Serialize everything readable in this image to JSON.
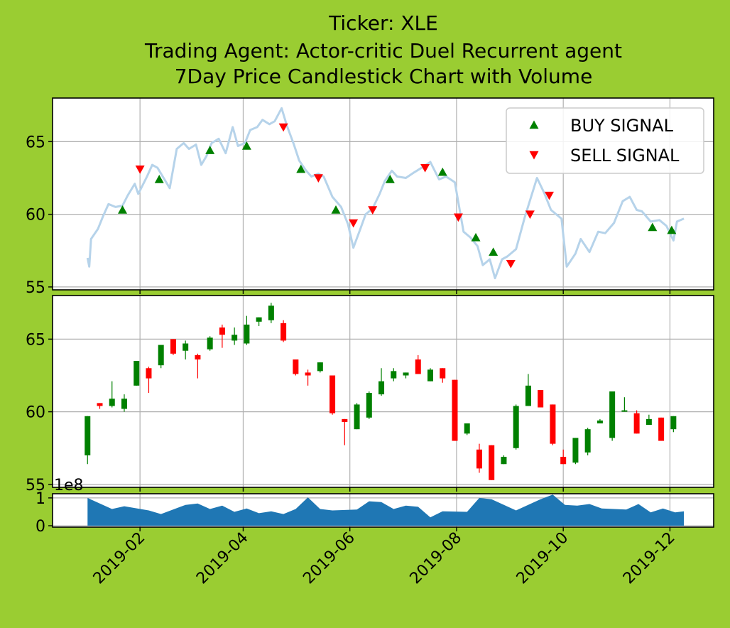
{
  "colors": {
    "background": "#9acd32",
    "line": "#b6d3ea",
    "buy": "#008000",
    "sell": "#ff0000",
    "volume": "#1f77b4",
    "grid": "#b0b0b0"
  },
  "chart_data": {
    "type": "line",
    "title": [
      "Ticker: XLE",
      "Trading Agent: Actor-critic Duel Recurrent agent",
      "7Day Price Candlestick Chart with Volume"
    ],
    "x_ticks": [
      "2019-02",
      "2019-04",
      "2019-06",
      "2019-08",
      "2019-10",
      "2019-12"
    ],
    "x_range": [
      "2018-12-13",
      "2019-12-26"
    ],
    "price_panel": {
      "ylim": [
        54.8,
        68.0
      ],
      "yticks": [
        55,
        60,
        65
      ],
      "grid": true,
      "legend_position": "top-right",
      "close_series": [
        [
          "2019-01-02",
          57.0
        ],
        [
          "2019-01-03",
          56.4
        ],
        [
          "2019-01-04",
          58.3
        ],
        [
          "2019-01-08",
          59.0
        ],
        [
          "2019-01-11",
          59.9
        ],
        [
          "2019-01-14",
          60.7
        ],
        [
          "2019-01-18",
          60.5
        ],
        [
          "2019-01-22",
          60.6
        ],
        [
          "2019-01-25",
          61.3
        ],
        [
          "2019-01-29",
          62.1
        ],
        [
          "2019-01-31",
          61.4
        ],
        [
          "2019-02-05",
          62.6
        ],
        [
          "2019-02-08",
          63.4
        ],
        [
          "2019-02-11",
          63.2
        ],
        [
          "2019-02-14",
          62.6
        ],
        [
          "2019-02-18",
          61.8
        ],
        [
          "2019-02-22",
          64.5
        ],
        [
          "2019-02-26",
          64.9
        ],
        [
          "2019-03-01",
          64.5
        ],
        [
          "2019-03-05",
          64.8
        ],
        [
          "2019-03-08",
          63.4
        ],
        [
          "2019-03-11",
          64.0
        ],
        [
          "2019-03-14",
          64.9
        ],
        [
          "2019-03-18",
          65.2
        ],
        [
          "2019-03-22",
          64.2
        ],
        [
          "2019-03-26",
          66.0
        ],
        [
          "2019-03-29",
          64.7
        ],
        [
          "2019-04-02",
          64.9
        ],
        [
          "2019-04-05",
          65.8
        ],
        [
          "2019-04-09",
          66.0
        ],
        [
          "2019-04-12",
          66.5
        ],
        [
          "2019-04-16",
          66.2
        ],
        [
          "2019-04-19",
          66.4
        ],
        [
          "2019-04-23",
          67.3
        ],
        [
          "2019-04-26",
          66.1
        ],
        [
          "2019-04-30",
          64.8
        ],
        [
          "2019-05-03",
          63.7
        ],
        [
          "2019-05-07",
          63.0
        ],
        [
          "2019-05-10",
          62.6
        ],
        [
          "2019-05-14",
          62.8
        ],
        [
          "2019-05-17",
          62.6
        ],
        [
          "2019-05-22",
          61.2
        ],
        [
          "2019-05-27",
          60.5
        ],
        [
          "2019-05-31",
          59.3
        ],
        [
          "2019-06-03",
          57.7
        ],
        [
          "2019-06-07",
          59.0
        ],
        [
          "2019-06-10",
          60.0
        ],
        [
          "2019-06-14",
          60.4
        ],
        [
          "2019-06-18",
          61.4
        ],
        [
          "2019-06-21",
          62.3
        ],
        [
          "2019-06-25",
          63.0
        ],
        [
          "2019-06-28",
          62.6
        ],
        [
          "2019-07-03",
          62.5
        ],
        [
          "2019-07-08",
          62.9
        ],
        [
          "2019-07-12",
          63.2
        ],
        [
          "2019-07-17",
          63.6
        ],
        [
          "2019-07-22",
          62.4
        ],
        [
          "2019-07-26",
          62.6
        ],
        [
          "2019-07-31",
          62.2
        ],
        [
          "2019-08-05",
          58.8
        ],
        [
          "2019-08-09",
          58.4
        ],
        [
          "2019-08-13",
          57.8
        ],
        [
          "2019-08-16",
          56.5
        ],
        [
          "2019-08-20",
          56.9
        ],
        [
          "2019-08-23",
          55.6
        ],
        [
          "2019-08-27",
          56.9
        ],
        [
          "2019-08-30",
          57.1
        ],
        [
          "2019-09-04",
          57.6
        ],
        [
          "2019-09-09",
          59.8
        ],
        [
          "2019-09-16",
          62.5
        ],
        [
          "2019-09-20",
          61.5
        ],
        [
          "2019-09-24",
          60.3
        ],
        [
          "2019-09-30",
          59.7
        ],
        [
          "2019-10-03",
          56.4
        ],
        [
          "2019-10-08",
          57.3
        ],
        [
          "2019-10-11",
          58.3
        ],
        [
          "2019-10-16",
          57.4
        ],
        [
          "2019-10-21",
          58.8
        ],
        [
          "2019-10-25",
          58.7
        ],
        [
          "2019-10-30",
          59.4
        ],
        [
          "2019-11-04",
          60.9
        ],
        [
          "2019-11-08",
          61.2
        ],
        [
          "2019-11-12",
          60.3
        ],
        [
          "2019-11-15",
          60.2
        ],
        [
          "2019-11-20",
          59.5
        ],
        [
          "2019-11-25",
          59.6
        ],
        [
          "2019-11-29",
          59.2
        ],
        [
          "2019-12-03",
          58.2
        ],
        [
          "2019-12-05",
          59.5
        ],
        [
          "2019-12-09",
          59.7
        ]
      ],
      "buy_signals": [
        [
          "2019-01-22",
          60.3
        ],
        [
          "2019-02-12",
          62.4
        ],
        [
          "2019-03-13",
          64.4
        ],
        [
          "2019-04-03",
          64.7
        ],
        [
          "2019-05-04",
          63.1
        ],
        [
          "2019-05-24",
          60.3
        ],
        [
          "2019-06-24",
          62.4
        ],
        [
          "2019-07-24",
          62.9
        ],
        [
          "2019-08-12",
          58.4
        ],
        [
          "2019-08-22",
          57.4
        ],
        [
          "2019-11-21",
          59.1
        ],
        [
          "2019-12-02",
          58.9
        ]
      ],
      "sell_signals": [
        [
          "2019-02-01",
          63.1
        ],
        [
          "2019-04-24",
          66.0
        ],
        [
          "2019-05-14",
          62.5
        ],
        [
          "2019-06-03",
          59.4
        ],
        [
          "2019-06-14",
          60.3
        ],
        [
          "2019-07-14",
          63.2
        ],
        [
          "2019-08-02",
          59.8
        ],
        [
          "2019-09-01",
          56.6
        ],
        [
          "2019-09-12",
          60.0
        ],
        [
          "2019-09-23",
          61.3
        ]
      ]
    },
    "candle_panel": {
      "ylim": [
        54.8,
        68.0
      ],
      "yticks": [
        55,
        60,
        65
      ],
      "grid": true,
      "candles": [
        [
          "2019-01-02",
          57.0,
          59.7,
          56.4,
          59.7
        ],
        [
          "2019-01-09",
          60.6,
          60.6,
          60.2,
          60.4
        ],
        [
          "2019-01-16",
          60.4,
          62.1,
          60.3,
          60.9
        ],
        [
          "2019-01-23",
          60.2,
          61.2,
          60.0,
          60.9
        ],
        [
          "2019-01-30",
          61.8,
          63.5,
          61.8,
          63.5
        ],
        [
          "2019-02-06",
          63.0,
          63.1,
          61.3,
          62.3
        ],
        [
          "2019-02-13",
          63.2,
          64.6,
          63.0,
          64.6
        ],
        [
          "2019-02-20",
          65.0,
          65.0,
          63.9,
          64.0
        ],
        [
          "2019-02-27",
          64.2,
          64.9,
          63.6,
          64.7
        ],
        [
          "2019-03-06",
          63.9,
          64.0,
          62.3,
          63.6
        ],
        [
          "2019-03-13",
          64.3,
          65.2,
          64.2,
          65.1
        ],
        [
          "2019-03-20",
          65.8,
          66.0,
          64.4,
          65.3
        ],
        [
          "2019-03-27",
          64.9,
          65.8,
          64.6,
          65.3
        ],
        [
          "2019-04-03",
          64.7,
          66.6,
          64.6,
          66.0
        ],
        [
          "2019-04-10",
          66.2,
          66.5,
          65.9,
          66.5
        ],
        [
          "2019-04-17",
          66.3,
          67.5,
          66.1,
          67.3
        ],
        [
          "2019-04-24",
          66.1,
          66.3,
          64.8,
          64.9
        ],
        [
          "2019-05-01",
          63.6,
          63.6,
          62.5,
          62.6
        ],
        [
          "2019-05-08",
          62.7,
          62.9,
          61.8,
          62.5
        ],
        [
          "2019-05-15",
          62.8,
          63.4,
          62.7,
          63.4
        ],
        [
          "2019-05-22",
          62.5,
          62.5,
          59.8,
          59.9
        ],
        [
          "2019-05-29",
          59.5,
          59.5,
          57.7,
          59.3
        ],
        [
          "2019-06-05",
          58.8,
          60.6,
          58.8,
          60.5
        ],
        [
          "2019-06-12",
          59.6,
          61.4,
          59.5,
          61.3
        ],
        [
          "2019-06-19",
          61.2,
          63.0,
          61.1,
          62.1
        ],
        [
          "2019-06-26",
          62.3,
          63.0,
          62.1,
          62.8
        ],
        [
          "2019-07-03",
          62.5,
          62.7,
          62.3,
          62.7
        ],
        [
          "2019-07-10",
          63.6,
          63.9,
          62.6,
          62.6
        ],
        [
          "2019-07-17",
          62.1,
          63.0,
          62.1,
          62.9
        ],
        [
          "2019-07-24",
          63.0,
          63.0,
          62.0,
          62.3
        ],
        [
          "2019-07-31",
          62.2,
          62.2,
          58.0,
          58.0
        ],
        [
          "2019-08-07",
          58.5,
          59.2,
          58.4,
          59.2
        ],
        [
          "2019-08-14",
          57.4,
          57.8,
          55.8,
          56.1
        ],
        [
          "2019-08-21",
          57.7,
          57.7,
          55.3,
          55.3
        ],
        [
          "2019-08-28",
          56.4,
          57.0,
          56.4,
          56.9
        ],
        [
          "2019-09-04",
          57.5,
          60.5,
          57.4,
          60.4
        ],
        [
          "2019-09-11",
          60.4,
          62.6,
          60.4,
          61.8
        ],
        [
          "2019-09-18",
          61.5,
          61.5,
          60.3,
          60.3
        ],
        [
          "2019-09-25",
          60.5,
          60.5,
          57.7,
          57.8
        ],
        [
          "2019-10-01",
          56.9,
          57.4,
          56.4,
          56.4
        ],
        [
          "2019-10-08",
          56.5,
          58.2,
          56.4,
          58.2
        ],
        [
          "2019-10-15",
          57.2,
          58.9,
          57.0,
          58.8
        ],
        [
          "2019-10-22",
          59.2,
          59.5,
          59.2,
          59.4
        ],
        [
          "2019-10-29",
          58.2,
          61.4,
          58.0,
          61.4
        ],
        [
          "2019-11-05",
          60.1,
          61.0,
          60.0,
          60.1
        ],
        [
          "2019-11-12",
          59.9,
          60.1,
          58.5,
          58.5
        ],
        [
          "2019-11-19",
          59.1,
          59.8,
          59.1,
          59.5
        ],
        [
          "2019-11-26",
          59.6,
          59.6,
          58.0,
          58.0
        ],
        [
          "2019-12-03",
          58.8,
          59.7,
          58.6,
          59.7
        ]
      ]
    },
    "volume_panel": {
      "type": "area",
      "offset_label": "1e8",
      "ylim": [
        -0.05,
        1.15
      ],
      "yticks": [
        0,
        1
      ],
      "grid": true,
      "series": [
        [
          "2019-01-02",
          1.0
        ],
        [
          "2019-01-16",
          0.6
        ],
        [
          "2019-01-23",
          0.7
        ],
        [
          "2019-02-06",
          0.55
        ],
        [
          "2019-02-13",
          0.42
        ],
        [
          "2019-02-27",
          0.75
        ],
        [
          "2019-03-06",
          0.8
        ],
        [
          "2019-03-13",
          0.6
        ],
        [
          "2019-03-20",
          0.72
        ],
        [
          "2019-03-27",
          0.5
        ],
        [
          "2019-04-03",
          0.62
        ],
        [
          "2019-04-10",
          0.45
        ],
        [
          "2019-04-17",
          0.52
        ],
        [
          "2019-04-24",
          0.42
        ],
        [
          "2019-05-01",
          0.6
        ],
        [
          "2019-05-08",
          1.02
        ],
        [
          "2019-05-15",
          0.6
        ],
        [
          "2019-05-22",
          0.55
        ],
        [
          "2019-06-05",
          0.58
        ],
        [
          "2019-06-12",
          0.88
        ],
        [
          "2019-06-19",
          0.85
        ],
        [
          "2019-06-26",
          0.6
        ],
        [
          "2019-07-03",
          0.72
        ],
        [
          "2019-07-10",
          0.68
        ],
        [
          "2019-07-17",
          0.3
        ],
        [
          "2019-07-24",
          0.52
        ],
        [
          "2019-08-07",
          0.5
        ],
        [
          "2019-08-14",
          1.0
        ],
        [
          "2019-08-21",
          0.95
        ],
        [
          "2019-09-04",
          0.55
        ],
        [
          "2019-09-18",
          0.95
        ],
        [
          "2019-09-25",
          1.12
        ],
        [
          "2019-10-02",
          0.75
        ],
        [
          "2019-10-09",
          0.72
        ],
        [
          "2019-10-16",
          0.78
        ],
        [
          "2019-10-23",
          0.62
        ],
        [
          "2019-10-30",
          0.6
        ],
        [
          "2019-11-06",
          0.58
        ],
        [
          "2019-11-13",
          0.78
        ],
        [
          "2019-11-20",
          0.48
        ],
        [
          "2019-11-27",
          0.62
        ],
        [
          "2019-12-04",
          0.48
        ],
        [
          "2019-12-09",
          0.52
        ]
      ]
    },
    "legend": [
      {
        "label": "BUY SIGNAL",
        "marker": "triangle-up"
      },
      {
        "label": "SELL SIGNAL",
        "marker": "triangle-down"
      }
    ]
  }
}
